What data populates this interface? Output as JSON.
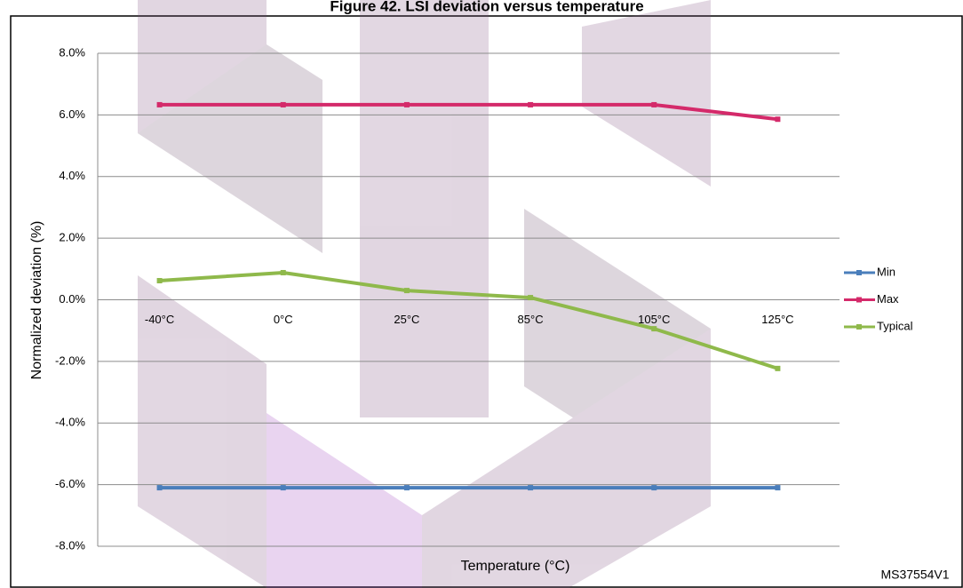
{
  "chart_data": {
    "type": "line",
    "title": "Figure 42. LSI deviation versus temperature",
    "xlabel": "Temperature (°C)",
    "ylabel": "Normalized deviation (%)",
    "reference": "MS37554V1",
    "categories": [
      "-40°C",
      "0°C",
      "25°C",
      "85°C",
      "105°C",
      "125°C"
    ],
    "series": [
      {
        "name": "Min",
        "color": "#4a7ebb",
        "values": [
          -6.1,
          -6.1,
          -6.1,
          -6.1,
          -6.1,
          -6.1
        ]
      },
      {
        "name": "Max",
        "color": "#d42a6a",
        "values": [
          6.33,
          6.33,
          6.33,
          6.33,
          6.33,
          5.86
        ]
      },
      {
        "name": "Typical",
        "color": "#8fb94b",
        "values": [
          0.62,
          0.88,
          0.3,
          0.07,
          -0.94,
          -2.23
        ]
      }
    ],
    "ylim": [
      -8,
      8
    ],
    "yticks": [
      {
        "value": -8,
        "label": "-8.0%"
      },
      {
        "value": -6,
        "label": "-6.0%"
      },
      {
        "value": -4,
        "label": "-4.0%"
      },
      {
        "value": -2,
        "label": "-2.0%"
      },
      {
        "value": 0,
        "label": "0.0%"
      },
      {
        "value": 2,
        "label": "2.0%"
      },
      {
        "value": 4,
        "label": "4.0%"
      },
      {
        "value": 6,
        "label": "6.0%"
      },
      {
        "value": 8,
        "label": "8.0%"
      }
    ],
    "grid": true,
    "legend": "right"
  }
}
